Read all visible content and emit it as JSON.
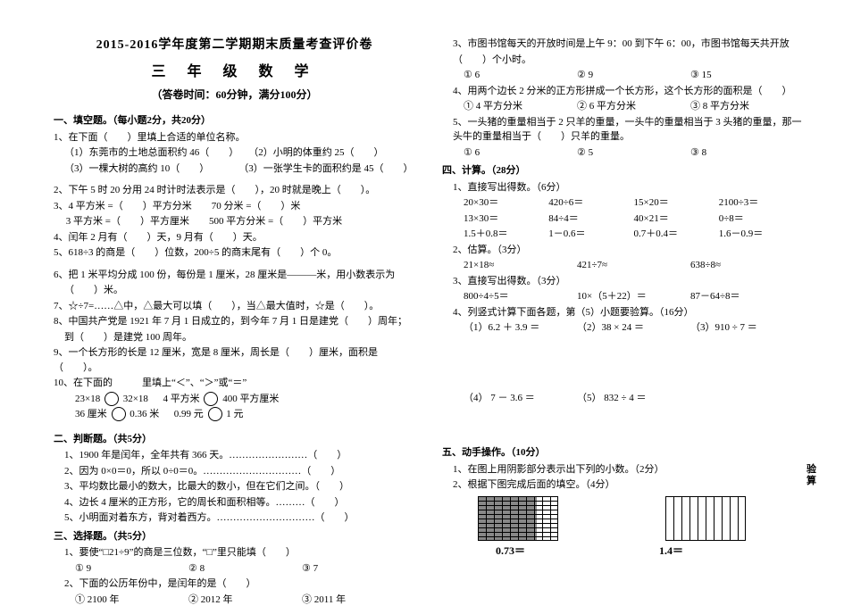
{
  "header": {
    "title_main": "2015-2016学年度第二学期期末质量考查评价卷",
    "title_sub": "三 年 级 数 学",
    "title_meta": "（答卷时间：60分钟，满分100分）"
  },
  "s1": {
    "head": "一、填空题。（每小题2分，共20分）",
    "q1": "1、在下面（　　）里填上合适的单位名称。",
    "q1a": "（1）东莞市的土地总面积约 46（　　）　　（2）小明的体重约 25（　　）",
    "q1b": "（3）一棵大树的高约 10（　　）　　　　（3）一张学生卡的面积约是 45（　　）",
    "q2": "2、下午 5 时 20 分用 24 时计时法表示是（　　），20 时就是晚上（　　）。",
    "q3": "3、4 平方米 =（　　）平方分米　　70 分米 =（　　）米",
    "q3b": "　 3 平方米 =（　　）平方厘米　　500 平方分米 =（　　）平方米",
    "q4": "4、闰年 2 月有（　　）天，9 月有（　　）天。",
    "q5": "5、618÷3 的商是（　　）位数，200÷5 的商末尾有（　　）个 0。",
    "q6": "6、把 1 米平均分成 100 份，每份是 1 厘米，28 厘米是———米，用小数表示为",
    "q6b": "（　　）米。",
    "q7": "7、☆÷7=……△中，△最大可以填（　　），当△最大值时，☆是（　　）。",
    "q8": "8、中国共产党是 1921 年 7 月 1 日成立的，到今年 7 月 1 日是建党（　　）周年；",
    "q8b": "到（　　）是建党 100 周年。",
    "q9": "9、一个长方形的长是 12 厘米，宽是 8 厘米，周长是（　　）厘米，面积是（　　）。",
    "q10": "10、在下面的　　　里填上“＜”、“＞”或“＝”",
    "q10a_l": "23×18",
    "q10a_r": "32×18",
    "q10b_l": "4 平方米",
    "q10b_r": "400 平方厘米",
    "q10c_l": "36 厘米",
    "q10c_r": "0.36 米",
    "q10d_l": "0.99 元",
    "q10d_r": "1 元"
  },
  "s2": {
    "head": "二、判断题。（共5分）",
    "q1": "1、1900 年是闰年，全年共有 366 天。……………………（　　）",
    "q2": "2、因为 0×0＝0，所以 0÷0＝0。…………………………（　　）",
    "q3": "3、平均数比最小的数大，比最大的数小，但在它们之间。（　　）",
    "q4": "4、边长 4 厘米的正方形，它的周长和面积相等。………（　　）",
    "q5": "5、小明面对着东方，背对着西方。…………………………（　　）"
  },
  "s3": {
    "head": "三、选择题。（共5分）",
    "q1": "1、要使“□21÷9”的商是三位数，“□”里只能填（　　）",
    "q1o1": "① 9",
    "q1o2": "② 8",
    "q1o3": "③ 7",
    "q2": "2、下面的公历年份中，是闰年的是（　　）",
    "q2o1": "① 2100 年",
    "q2o2": "② 2012 年",
    "q2o3": "③ 2011 年",
    "q3": "3、市图书馆每天的开放时间是上午 9：00 到下午 6：00，市图书馆每天共开放",
    "q3b": "（　　）个小时。",
    "q3o1": "① 6",
    "q3o2": "② 9",
    "q3o3": "③ 15",
    "q4": "4、用两个边长 2 分米的正方形拼成一个长方形，这个长方形的面积是（　　）",
    "q4o1": "① 4 平方分米",
    "q4o2": "② 6 平方分米",
    "q4o3": "③ 8 平方分米",
    "q5": "5、一头猪的重量相当于 2 只羊的重量，一头牛的重量相当于 3 头猪的重量，那一头牛的重量相当于（　　）只羊的重量。",
    "q5o1": "① 6",
    "q5o2": "② 5",
    "q5o3": "③ 8"
  },
  "s4": {
    "head": "四、计算。（28分）",
    "p1": "1、直接写出得数。（6分）",
    "p1r1a": "20×30＝",
    "p1r1b": "420÷6＝",
    "p1r1c": "15×20＝",
    "p1r1d": "2100÷3＝",
    "p1r2a": "13×30＝",
    "p1r2b": "84÷4＝",
    "p1r2c": "40×21＝",
    "p1r2d": "0÷8＝",
    "p1r3a": "1.5＋0.8＝",
    "p1r3b": "1－0.6＝",
    "p1r3c": "0.7＋0.4＝",
    "p1r3d": "1.6－0.9＝",
    "p2": "2、估算。（3分）",
    "p2a": "21×18≈",
    "p2b": "421÷7≈",
    "p2c": "638÷8≈",
    "p3": "3、直接写出得数。（3分）",
    "p3a": "800÷4÷5＝",
    "p3b": "10×（5＋22）＝",
    "p3c": "87－64÷8＝",
    "p4": "4、列竖式计算下面各题，第（5）小题要验算。（16分）",
    "p4a": "（1）6.2 ＋ 3.9 ＝",
    "p4b": "（2）38 × 24 ＝",
    "p4c": "（3）910 ÷ 7 ＝",
    "p4d": "（4） 7 － 3.6 ＝",
    "p4e": "（5） 832 ÷ 4 ＝"
  },
  "s5": {
    "head": "五、动手操作。（10分）",
    "q1": "1、在图上用阴影部分表示出下列的小数。（2分）",
    "q2": "2、根据下图完成后面的填空。（4分）",
    "g1_label": "0.73＝",
    "g2_label": "1.4＝",
    "g1_shade_pct": 73,
    "g1_shade_color": "#888888",
    "grid_line_color": "#000000",
    "bg_color": "#ffffff"
  },
  "verify_label": "验算"
}
